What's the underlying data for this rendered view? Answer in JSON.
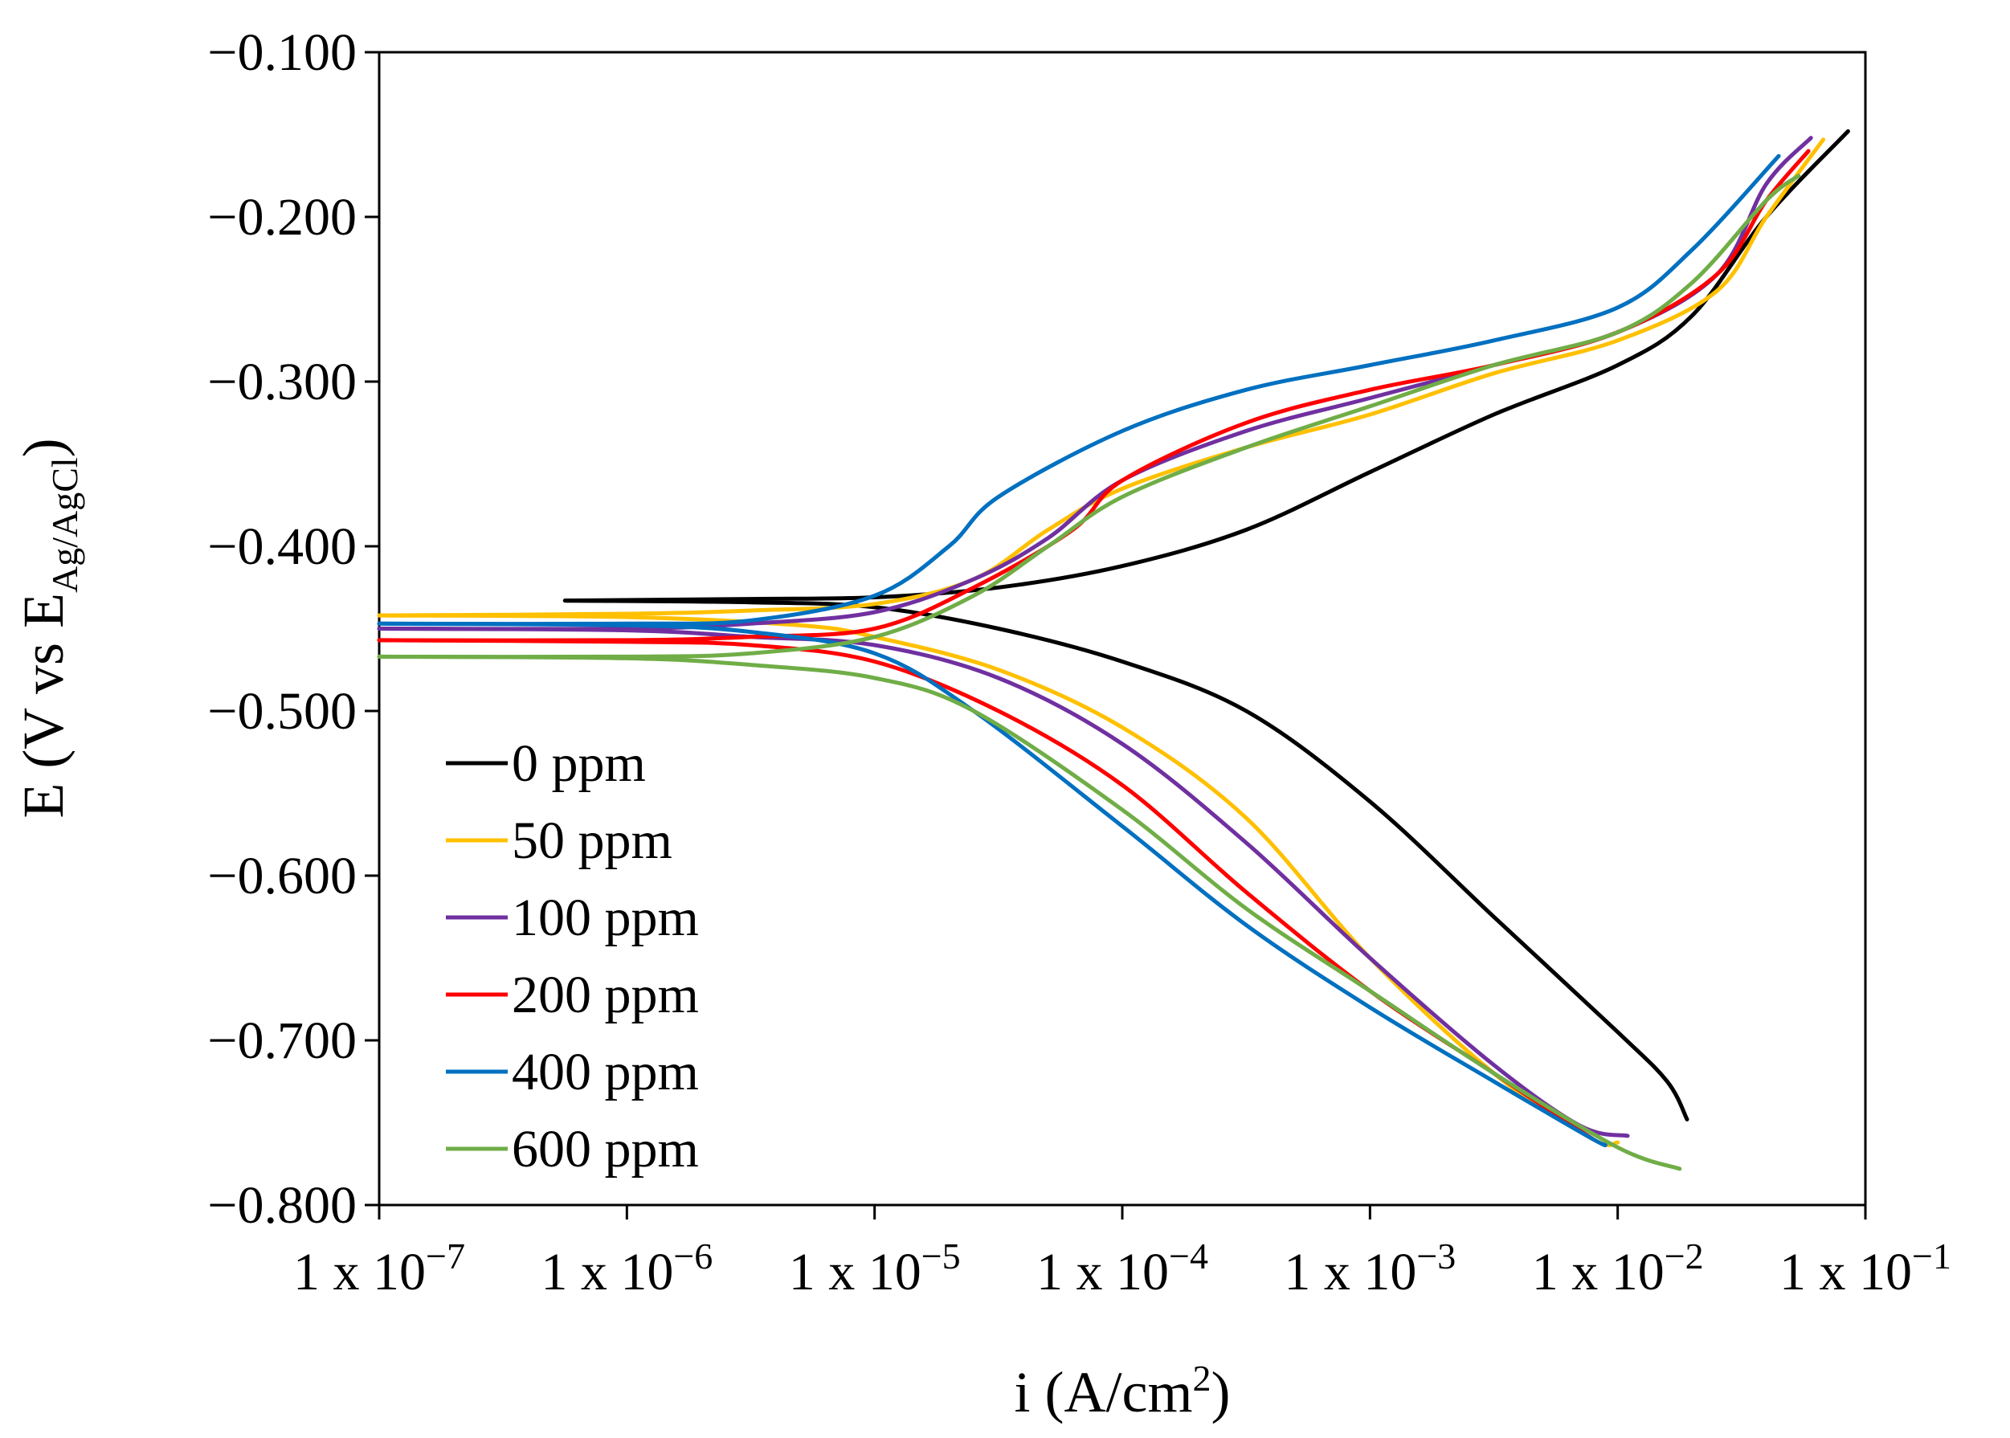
{
  "chart_data": {
    "type": "line",
    "title": "",
    "xlabel": {
      "base": "i (A/cm",
      "sup": "2",
      "tail": ")"
    },
    "ylabel": {
      "base": "E (V vs E",
      "sub": "Ag/AgCl",
      "tail": ")"
    },
    "x_scale": "log",
    "xlim_exp": [
      -7,
      -1
    ],
    "ylim": [
      -0.8,
      -0.1
    ],
    "grid": false,
    "legend_position": "bottom-left",
    "x_ticks": [
      {
        "exp": -7,
        "mantissa": "1 x 10",
        "power": "−7"
      },
      {
        "exp": -6,
        "mantissa": "1 x 10",
        "power": "−6"
      },
      {
        "exp": -5,
        "mantissa": "1 x 10",
        "power": "−5"
      },
      {
        "exp": -4,
        "mantissa": "1 x 10",
        "power": "−4"
      },
      {
        "exp": -3,
        "mantissa": "1 x 10",
        "power": "−3"
      },
      {
        "exp": -2,
        "mantissa": "1 x 10",
        "power": "−2"
      },
      {
        "exp": -1,
        "mantissa": "1 x 10",
        "power": "−1"
      }
    ],
    "y_ticks": [
      {
        "value": -0.1,
        "label": "−0.100"
      },
      {
        "value": -0.2,
        "label": "−0.200"
      },
      {
        "value": -0.3,
        "label": "−0.300"
      },
      {
        "value": -0.4,
        "label": "−0.400"
      },
      {
        "value": -0.5,
        "label": "−0.500"
      },
      {
        "value": -0.6,
        "label": "−0.600"
      },
      {
        "value": -0.7,
        "label": "−0.700"
      },
      {
        "value": -0.8,
        "label": "−0.800"
      }
    ],
    "series": [
      {
        "name": "0 ppm",
        "color": "#000000",
        "anodic": [
          [
            -6.25,
            -0.433
          ],
          [
            -5.5,
            -0.432
          ],
          [
            -5.0,
            -0.431
          ],
          [
            -4.5,
            -0.425
          ],
          [
            -4.0,
            -0.412
          ],
          [
            -3.5,
            -0.39
          ],
          [
            -3.0,
            -0.355
          ],
          [
            -2.5,
            -0.32
          ],
          [
            -2.0,
            -0.29
          ],
          [
            -1.7,
            -0.26
          ],
          [
            -1.4,
            -0.2
          ],
          [
            -1.07,
            -0.148
          ]
        ],
        "cathodic": [
          [
            -6.25,
            -0.433
          ],
          [
            -5.5,
            -0.434
          ],
          [
            -5.0,
            -0.437
          ],
          [
            -4.5,
            -0.45
          ],
          [
            -4.0,
            -0.47
          ],
          [
            -3.5,
            -0.5
          ],
          [
            -3.0,
            -0.555
          ],
          [
            -2.5,
            -0.625
          ],
          [
            -2.0,
            -0.695
          ],
          [
            -1.8,
            -0.725
          ],
          [
            -1.72,
            -0.748
          ]
        ]
      },
      {
        "name": "50 ppm",
        "color": "#FFC000",
        "anodic": [
          [
            -7.0,
            -0.442
          ],
          [
            -6.0,
            -0.441
          ],
          [
            -5.5,
            -0.439
          ],
          [
            -5.0,
            -0.435
          ],
          [
            -4.6,
            -0.42
          ],
          [
            -4.3,
            -0.39
          ],
          [
            -4.0,
            -0.365
          ],
          [
            -3.5,
            -0.34
          ],
          [
            -3.0,
            -0.32
          ],
          [
            -2.5,
            -0.295
          ],
          [
            -2.0,
            -0.275
          ],
          [
            -1.6,
            -0.245
          ],
          [
            -1.4,
            -0.2
          ],
          [
            -1.17,
            -0.153
          ]
        ],
        "cathodic": [
          [
            -7.0,
            -0.442
          ],
          [
            -6.0,
            -0.443
          ],
          [
            -5.3,
            -0.448
          ],
          [
            -5.0,
            -0.455
          ],
          [
            -4.5,
            -0.475
          ],
          [
            -4.0,
            -0.51
          ],
          [
            -3.5,
            -0.565
          ],
          [
            -3.0,
            -0.65
          ],
          [
            -2.5,
            -0.72
          ],
          [
            -2.1,
            -0.76
          ],
          [
            -2.0,
            -0.762
          ]
        ]
      },
      {
        "name": "100 ppm",
        "color": "#7030A0",
        "anodic": [
          [
            -7.0,
            -0.45
          ],
          [
            -6.0,
            -0.45
          ],
          [
            -5.5,
            -0.447
          ],
          [
            -5.0,
            -0.44
          ],
          [
            -4.6,
            -0.42
          ],
          [
            -4.3,
            -0.395
          ],
          [
            -4.0,
            -0.36
          ],
          [
            -3.5,
            -0.33
          ],
          [
            -3.0,
            -0.31
          ],
          [
            -2.5,
            -0.29
          ],
          [
            -2.0,
            -0.27
          ],
          [
            -1.6,
            -0.235
          ],
          [
            -1.4,
            -0.18
          ],
          [
            -1.22,
            -0.152
          ]
        ],
        "cathodic": [
          [
            -7.0,
            -0.45
          ],
          [
            -6.0,
            -0.451
          ],
          [
            -5.5,
            -0.455
          ],
          [
            -5.0,
            -0.46
          ],
          [
            -4.5,
            -0.48
          ],
          [
            -4.0,
            -0.52
          ],
          [
            -3.5,
            -0.58
          ],
          [
            -3.0,
            -0.65
          ],
          [
            -2.5,
            -0.715
          ],
          [
            -2.15,
            -0.752
          ],
          [
            -1.96,
            -0.758
          ]
        ]
      },
      {
        "name": "200 ppm",
        "color": "#FF0000",
        "anodic": [
          [
            -7.0,
            -0.457
          ],
          [
            -6.0,
            -0.457
          ],
          [
            -5.5,
            -0.455
          ],
          [
            -5.0,
            -0.45
          ],
          [
            -4.6,
            -0.425
          ],
          [
            -4.2,
            -0.39
          ],
          [
            -4.0,
            -0.36
          ],
          [
            -3.5,
            -0.325
          ],
          [
            -3.0,
            -0.305
          ],
          [
            -2.5,
            -0.29
          ],
          [
            -2.0,
            -0.27
          ],
          [
            -1.6,
            -0.235
          ],
          [
            -1.4,
            -0.19
          ],
          [
            -1.23,
            -0.16
          ]
        ],
        "cathodic": [
          [
            -7.0,
            -0.457
          ],
          [
            -6.0,
            -0.458
          ],
          [
            -5.5,
            -0.46
          ],
          [
            -5.0,
            -0.47
          ],
          [
            -4.5,
            -0.5
          ],
          [
            -4.0,
            -0.545
          ],
          [
            -3.5,
            -0.61
          ],
          [
            -3.0,
            -0.67
          ],
          [
            -2.5,
            -0.72
          ],
          [
            -2.15,
            -0.755
          ],
          [
            -2.1,
            -0.76
          ]
        ]
      },
      {
        "name": "400 ppm",
        "color": "#0070C0",
        "anodic": [
          [
            -7.0,
            -0.447
          ],
          [
            -6.0,
            -0.447
          ],
          [
            -5.5,
            -0.445
          ],
          [
            -5.0,
            -0.43
          ],
          [
            -4.7,
            -0.4
          ],
          [
            -4.5,
            -0.37
          ],
          [
            -4.0,
            -0.33
          ],
          [
            -3.5,
            -0.305
          ],
          [
            -3.0,
            -0.29
          ],
          [
            -2.5,
            -0.275
          ],
          [
            -2.0,
            -0.255
          ],
          [
            -1.7,
            -0.22
          ],
          [
            -1.35,
            -0.163
          ]
        ],
        "cathodic": [
          [
            -7.0,
            -0.447
          ],
          [
            -6.0,
            -0.448
          ],
          [
            -5.5,
            -0.452
          ],
          [
            -5.0,
            -0.465
          ],
          [
            -4.6,
            -0.5
          ],
          [
            -4.0,
            -0.57
          ],
          [
            -3.5,
            -0.63
          ],
          [
            -3.0,
            -0.68
          ],
          [
            -2.5,
            -0.725
          ],
          [
            -2.1,
            -0.76
          ],
          [
            -2.05,
            -0.763
          ]
        ]
      },
      {
        "name": "600 ppm",
        "color": "#70AD47",
        "anodic": [
          [
            -7.0,
            -0.467
          ],
          [
            -6.0,
            -0.467
          ],
          [
            -5.5,
            -0.465
          ],
          [
            -5.0,
            -0.455
          ],
          [
            -4.6,
            -0.43
          ],
          [
            -4.3,
            -0.4
          ],
          [
            -4.0,
            -0.37
          ],
          [
            -3.5,
            -0.34
          ],
          [
            -3.0,
            -0.315
          ],
          [
            -2.5,
            -0.29
          ],
          [
            -2.0,
            -0.27
          ],
          [
            -1.7,
            -0.24
          ],
          [
            -1.4,
            -0.19
          ],
          [
            -1.27,
            -0.175
          ]
        ],
        "cathodic": [
          [
            -7.0,
            -0.467
          ],
          [
            -6.0,
            -0.468
          ],
          [
            -5.5,
            -0.472
          ],
          [
            -5.0,
            -0.48
          ],
          [
            -4.6,
            -0.5
          ],
          [
            -4.0,
            -0.56
          ],
          [
            -3.5,
            -0.62
          ],
          [
            -3.0,
            -0.67
          ],
          [
            -2.5,
            -0.72
          ],
          [
            -2.0,
            -0.765
          ],
          [
            -1.75,
            -0.778
          ]
        ]
      }
    ]
  }
}
